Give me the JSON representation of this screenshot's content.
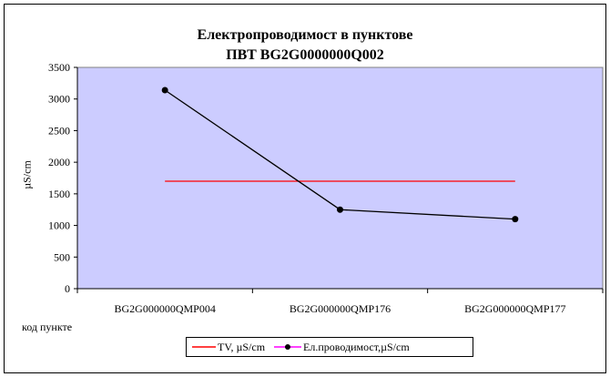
{
  "chart_data": {
    "type": "line",
    "title_line1": "Електропроводимост в пунктове",
    "title_line2": "ПВТ BG2G0000000Q002",
    "ylabel": "µS/cm",
    "xlabel": "код пункте",
    "ylim": [
      0,
      3500
    ],
    "yticks": [
      0,
      500,
      1000,
      1500,
      2000,
      2500,
      3000,
      3500
    ],
    "categories": [
      "BG2G000000QMP004",
      "BG2G000000QMP176",
      "BG2G000000QMP177"
    ],
    "series": [
      {
        "name": "TV, µS/cm",
        "values": [
          1700,
          1700,
          1700
        ],
        "color": "#ff0000",
        "marker": "none"
      },
      {
        "name": "Ел.проводимост,µS/cm",
        "values": [
          3140,
          1250,
          1100
        ],
        "color": "#000000",
        "marker": "circle",
        "legend_line_color": "#ff00ff"
      }
    ],
    "plot_background": "#ccccff",
    "grid": false,
    "legend_position": "bottom"
  }
}
